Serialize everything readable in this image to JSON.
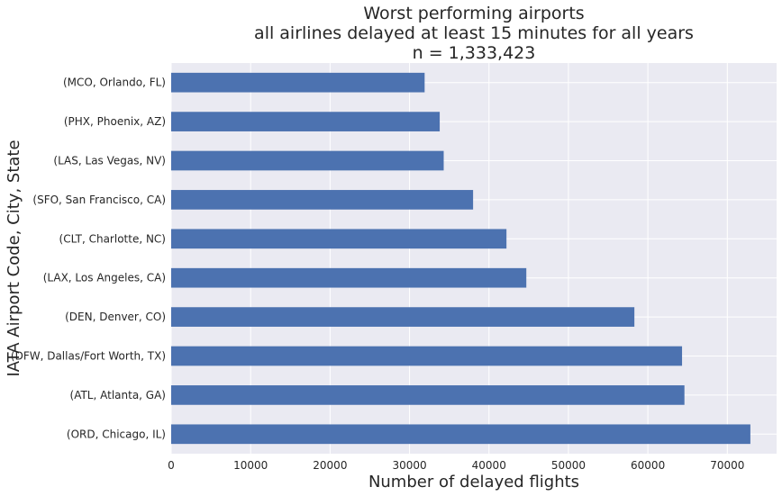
{
  "chart_data": {
    "type": "bar",
    "orientation": "horizontal",
    "title_lines": [
      "Worst performing airports",
      "all airlines delayed at least 15 minutes for all years",
      "n = 1,333,423"
    ],
    "xlabel": "Number of delayed flights",
    "ylabel": "IATA Airport Code, City, State",
    "xlim": [
      0,
      76200
    ],
    "xticks": [
      0,
      10000,
      20000,
      30000,
      40000,
      50000,
      60000,
      70000
    ],
    "xtick_labels": [
      "0",
      "10000",
      "20000",
      "30000",
      "40000",
      "50000",
      "60000",
      "70000"
    ],
    "categories": [
      "(ORD, Chicago, IL)",
      "(ATL, Atlanta, GA)",
      "(DFW, Dallas/Fort Worth, TX)",
      "(DEN, Denver, CO)",
      "(LAX, Los Angeles, CA)",
      "(CLT, Charlotte, NC)",
      "(SFO, San Francisco, CA)",
      "(LAS, Las Vegas, NV)",
      "(PHX, Phoenix, AZ)",
      "(MCO, Orlando, FL)"
    ],
    "values": [
      72900,
      64600,
      64300,
      58300,
      44700,
      42200,
      38000,
      34300,
      33800,
      31900
    ],
    "bar_color": "#4c72b0",
    "plot_background": "#eaeaf2",
    "grid": true,
    "grid_color": "#ffffff"
  }
}
